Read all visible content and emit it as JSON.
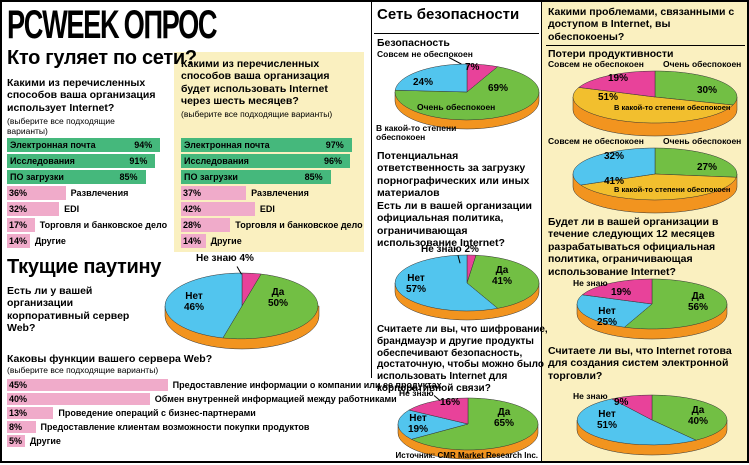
{
  "masthead": {
    "brand": "PCWEEK",
    "title": "ОПРОС"
  },
  "source": "Источник: CMR Market Research Inc.",
  "sections": {
    "left1_title": "Кто гуляет по сети?",
    "left2_title": "Ткущие паутину",
    "middle_title": "Сеть безопасности",
    "security_label": "Безопасность",
    "productivity_label": "Потери продуктивности"
  },
  "questions": {
    "use_now": "Какими из перечисленных способов ваша организация использует Internet?",
    "hint": "(выберите все подходящие варианты)",
    "use_future": "Какими из перечисленных способов ваша организация будет использовать Internet через шесть месяцев?",
    "web_server": "Есть ли у вашей организации корпоративный сервер Web?",
    "functions": "Каковы функции вашего сервера Web?",
    "liability": "Потенциальная ответственность за загрузку порнографических или иных материалов",
    "policy": "Есть ли в вашей организации официальная политика, ограничивающая использование Internet?",
    "encryption": "Считаете ли вы, что шифрование, брандмауэр и другие продукты обеспечивают безопасность, достаточную, чтобы можно было использовать Internet для корпоративной связи?",
    "concerns": "Какими проблемами, связанными с доступом в Internet, вы обеспокоены?",
    "policy12": "Будет ли в вашей организации в течение следующих 12 месяцев разрабатываться официальная политика, ограничивающая использование Internet?",
    "commerce": "Считаете ли вы, что Internet готова для создания систем электронной торговли?"
  },
  "colors": {
    "bar_green": "#45b87c",
    "bar_pink": "#f0abca",
    "pie_green": "#72bf44",
    "pie_cyan": "#52c5ee",
    "pie_magenta": "#e8429a",
    "pie_yellow": "#f2bf2e",
    "pie_rim": "#f2941f",
    "panel_yellow": "#faf0c0"
  },
  "chart_data": [
    {
      "id": "internet_use_now",
      "type": "bar",
      "title": "Какими из перечисленных способов ваша организация использует Internet?",
      "unit": "%",
      "xlim": [
        0,
        100
      ],
      "categories": [
        "Электронная почта",
        "Исследования",
        "ПО загрузки",
        "Развлечения",
        "EDI",
        "Торговля и банковское дело",
        "Другие"
      ],
      "values": [
        94,
        91,
        85,
        36,
        32,
        17,
        14
      ],
      "bar_colors": [
        "#45b87c",
        "#45b87c",
        "#45b87c",
        "#f0abca",
        "#f0abca",
        "#f0abca",
        "#f0abca"
      ]
    },
    {
      "id": "internet_use_in_6_months",
      "type": "bar",
      "title": "Какими из перечисленных способов ваша организация будет использовать Internet через шесть месяцев?",
      "unit": "%",
      "xlim": [
        0,
        100
      ],
      "categories": [
        "Электронная почта",
        "Исследования",
        "ПО загрузки",
        "Развлечения",
        "EDI",
        "Торговля и банковское дело",
        "Другие"
      ],
      "values": [
        97,
        96,
        85,
        37,
        42,
        28,
        14
      ],
      "bar_colors": [
        "#45b87c",
        "#45b87c",
        "#45b87c",
        "#f0abca",
        "#f0abca",
        "#f0abca",
        "#f0abca"
      ]
    },
    {
      "id": "corporate_web_server",
      "type": "pie",
      "title": "Есть ли у вашей организации корпоративный сервер Web?",
      "slices": [
        {
          "label": "Не знаю",
          "value": 4,
          "pct": "4%",
          "color": "#e8429a"
        },
        {
          "label": "Да",
          "value": 50,
          "pct": "50%",
          "color": "#72bf44"
        },
        {
          "label": "Нет",
          "value": 46,
          "pct": "46%",
          "color": "#52c5ee"
        }
      ]
    },
    {
      "id": "web_server_functions",
      "type": "bar",
      "title": "Каковы функции вашего сервера Web?",
      "unit": "%",
      "xlim": [
        0,
        100
      ],
      "categories": [
        "Предоставление информации о компании или ее продуктах",
        "Обмен внутренней информацией между работниками",
        "Проведение операций с бизнес-партнерами",
        "Предоставление клиентам возможности покупки продуктов",
        "Другие"
      ],
      "values": [
        45,
        40,
        13,
        8,
        5
      ],
      "bar_colors": [
        "#f0abca",
        "#f0abca",
        "#f0abca",
        "#f0abca",
        "#f0abca"
      ]
    },
    {
      "id": "concern_security",
      "type": "pie",
      "title": "Безопасность",
      "slices": [
        {
          "label": "Совсем не обеспокоен",
          "value": 7,
          "pct": "7%",
          "color": "#e8429a"
        },
        {
          "label": "Очень обеспокоен",
          "value": 69,
          "pct": "69%",
          "color": "#72bf44"
        },
        {
          "label": "В какой-то степени обеспокоен",
          "value": 24,
          "pct": "24%",
          "color": "#52c5ee"
        }
      ]
    },
    {
      "id": "concern_productivity",
      "type": "pie",
      "title": "Потери продуктивности",
      "slices": [
        {
          "label": "Очень обеспокоен",
          "value": 30,
          "pct": "30%",
          "color": "#72bf44"
        },
        {
          "label": "В какой-то степени обеспокоен",
          "value": 51,
          "pct": "51%",
          "color": "#f2bf2e"
        },
        {
          "label": "Совсем не обеспокоен",
          "value": 19,
          "pct": "19%",
          "color": "#e8429a"
        }
      ]
    },
    {
      "id": "concern_liability",
      "type": "pie",
      "title": "Потенциальная ответственность за загрузку порнографических или иных материалов",
      "slices": [
        {
          "label": "Очень обеспокоен",
          "value": 27,
          "pct": "27%",
          "color": "#72bf44"
        },
        {
          "label": "В какой-то степени обеспокоен",
          "value": 41,
          "pct": "41%",
          "color": "#f2bf2e"
        },
        {
          "label": "Совсем не обеспокоен",
          "value": 32,
          "pct": "32%",
          "color": "#52c5ee"
        }
      ]
    },
    {
      "id": "official_policy_now",
      "type": "pie",
      "title": "Есть ли в вашей организации официальная политика, ограничивающая использование Internet?",
      "slices": [
        {
          "label": "Не знаю",
          "value": 2,
          "pct": "2%",
          "color": "#e8429a"
        },
        {
          "label": "Да",
          "value": 41,
          "pct": "41%",
          "color": "#72bf44"
        },
        {
          "label": "Нет",
          "value": 57,
          "pct": "57%",
          "color": "#52c5ee"
        }
      ]
    },
    {
      "id": "official_policy_12_months",
      "type": "pie",
      "title": "Будет ли в вашей организации в течение следующих 12 месяцев разрабатываться официальная политика, ограничивающая использование Internet?",
      "slices": [
        {
          "label": "Да",
          "value": 56,
          "pct": "56%",
          "color": "#72bf44"
        },
        {
          "label": "Нет",
          "value": 25,
          "pct": "25%",
          "color": "#52c5ee"
        },
        {
          "label": "Не знаю",
          "value": 19,
          "pct": "19%",
          "color": "#e8429a"
        }
      ]
    },
    {
      "id": "encryption_sufficient",
      "type": "pie",
      "title": "Считаете ли вы, что шифрование, брандмауэр и другие продукты обеспечивают безопасность, достаточную, чтобы можно было использовать Internet для корпоративной связи?",
      "slices": [
        {
          "label": "Да",
          "value": 65,
          "pct": "65%",
          "color": "#72bf44"
        },
        {
          "label": "Нет",
          "value": 19,
          "pct": "19%",
          "color": "#52c5ee"
        },
        {
          "label": "Не знаю",
          "value": 16,
          "pct": "16%",
          "color": "#e8429a"
        }
      ]
    },
    {
      "id": "internet_ready_for_commerce",
      "type": "pie",
      "title": "Считаете ли вы, что Internet готова для создания систем электронной торговли?",
      "slices": [
        {
          "label": "Да",
          "value": 40,
          "pct": "40%",
          "color": "#72bf44"
        },
        {
          "label": "Нет",
          "value": 51,
          "pct": "51%",
          "color": "#52c5ee"
        },
        {
          "label": "Не знаю",
          "value": 9,
          "pct": "9%",
          "color": "#e8429a"
        }
      ]
    }
  ]
}
